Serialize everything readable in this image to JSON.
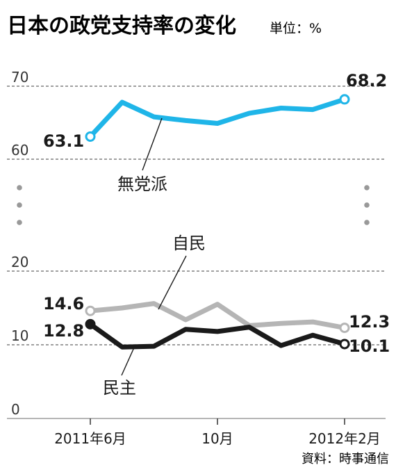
{
  "title": "日本の政党支持率の変化",
  "unit": "単位：%",
  "source": "資料：時事通信",
  "colors": {
    "independent": "#1fb5e8",
    "ldp": "#b5b5b5",
    "dpj": "#1a1a1a"
  },
  "chart_data": {
    "type": "line",
    "title": "日本の政党支持率の変化",
    "ylabel": "単位：%",
    "broken_axis": true,
    "upper_segment": {
      "ylim": [
        60,
        70
      ],
      "ticks": [
        "60",
        "70"
      ]
    },
    "lower_segment": {
      "ylim": [
        0,
        20
      ],
      "ticks": [
        "0",
        "10",
        "20"
      ]
    },
    "x": [
      "2011-06",
      "2011-07",
      "2011-08",
      "2011-09",
      "2011-10",
      "2011-11",
      "2011-12",
      "2012-01",
      "2012-02"
    ],
    "x_tick_labels": [
      {
        "x": "2011-06",
        "label": "2011年6月"
      },
      {
        "x": "2011-10",
        "label": "10月"
      },
      {
        "x": "2012-02",
        "label": "2012年2月"
      }
    ],
    "series": [
      {
        "name": "無党派",
        "segment": "upper",
        "values": [
          63.1,
          67.8,
          65.8,
          65.3,
          64.9,
          66.3,
          67.0,
          66.8,
          68.2
        ],
        "start_label": "63.1",
        "end_label": "68.2"
      },
      {
        "name": "自民",
        "segment": "lower",
        "values": [
          14.6,
          15.0,
          15.6,
          13.4,
          15.5,
          12.6,
          12.9,
          13.1,
          12.3
        ],
        "start_label": "14.6",
        "end_label": "12.3"
      },
      {
        "name": "民主",
        "segment": "lower",
        "values": [
          12.8,
          9.7,
          9.8,
          12.1,
          11.8,
          12.4,
          9.9,
          11.3,
          10.1
        ],
        "start_label": "12.8",
        "end_label": "10.1"
      }
    ]
  }
}
